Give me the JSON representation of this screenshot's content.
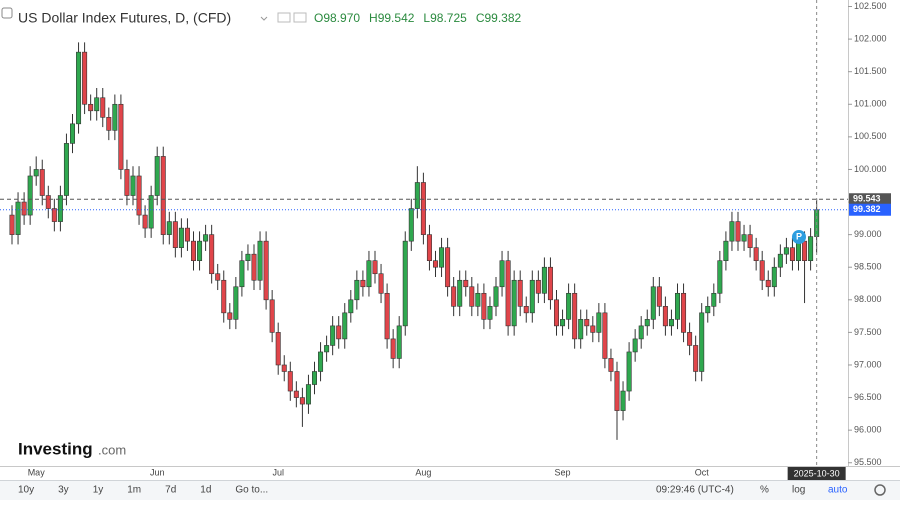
{
  "chart_data": {
    "type": "candlestick",
    "title": "US Dollar Index Futures, D, (CFD)",
    "ohlc_labels": [
      "O98.970",
      "H99.542",
      "L98.725",
      "C99.382"
    ],
    "up_color": "#2fa84f",
    "down_color": "#e0454a",
    "categories": [
      null,
      null,
      null,
      null,
      "May",
      null,
      null,
      null,
      null,
      null,
      null,
      null,
      null,
      null,
      null,
      null,
      null,
      null,
      null,
      null,
      null,
      null,
      null,
      null,
      "Jun",
      null,
      null,
      null,
      null,
      null,
      null,
      null,
      null,
      null,
      null,
      null,
      null,
      null,
      null,
      null,
      null,
      null,
      null,
      null,
      "Jul",
      null,
      null,
      null,
      null,
      null,
      null,
      null,
      null,
      null,
      null,
      null,
      null,
      null,
      null,
      null,
      null,
      null,
      null,
      null,
      null,
      null,
      null,
      null,
      "Aug",
      null,
      null,
      null,
      null,
      null,
      null,
      null,
      null,
      null,
      null,
      null,
      null,
      null,
      null,
      null,
      null,
      null,
      null,
      null,
      null,
      null,
      null,
      "Sep",
      null,
      null,
      null,
      null,
      null,
      null,
      null,
      null,
      null,
      null,
      null,
      null,
      null,
      null,
      null,
      null,
      null,
      null,
      null,
      null,
      null,
      null,
      "Oct",
      null,
      null,
      null,
      null,
      null,
      null,
      null,
      null,
      null,
      null,
      null,
      null,
      null,
      null,
      null,
      null,
      null,
      null,
      null
    ],
    "ohlc": [
      [
        99.3,
        99.45,
        98.85,
        99.0
      ],
      [
        99.0,
        99.65,
        98.85,
        99.5
      ],
      [
        99.5,
        99.65,
        99.15,
        99.3
      ],
      [
        99.3,
        100.05,
        99.15,
        99.9
      ],
      [
        99.9,
        100.2,
        99.75,
        100.0
      ],
      [
        100.0,
        100.15,
        99.45,
        99.6
      ],
      [
        99.6,
        99.75,
        99.25,
        99.4
      ],
      [
        99.4,
        99.55,
        99.05,
        99.2
      ],
      [
        99.2,
        99.75,
        99.05,
        99.6
      ],
      [
        99.6,
        100.55,
        99.45,
        100.4
      ],
      [
        100.4,
        100.85,
        100.25,
        100.7
      ],
      [
        100.7,
        101.95,
        100.55,
        101.8
      ],
      [
        101.8,
        101.95,
        100.85,
        101.0
      ],
      [
        101.0,
        101.15,
        100.75,
        100.9
      ],
      [
        100.9,
        101.25,
        100.75,
        101.1
      ],
      [
        101.1,
        101.25,
        100.65,
        100.8
      ],
      [
        100.8,
        100.95,
        100.45,
        100.6
      ],
      [
        100.6,
        101.15,
        100.45,
        101.0
      ],
      [
        101.0,
        101.15,
        99.85,
        100.0
      ],
      [
        100.0,
        100.15,
        99.45,
        99.6
      ],
      [
        99.6,
        100.05,
        99.45,
        99.9
      ],
      [
        99.9,
        100.05,
        99.15,
        99.3
      ],
      [
        99.3,
        99.45,
        98.95,
        99.1
      ],
      [
        99.1,
        99.75,
        98.95,
        99.6
      ],
      [
        99.6,
        100.35,
        99.45,
        100.2
      ],
      [
        100.2,
        100.35,
        98.85,
        99.0
      ],
      [
        99.0,
        99.35,
        98.85,
        99.2
      ],
      [
        99.2,
        99.35,
        98.65,
        98.8
      ],
      [
        98.8,
        99.25,
        98.65,
        99.1
      ],
      [
        99.1,
        99.25,
        98.75,
        98.9
      ],
      [
        98.9,
        99.05,
        98.45,
        98.6
      ],
      [
        98.6,
        99.05,
        98.45,
        98.9
      ],
      [
        98.9,
        99.15,
        98.75,
        99.0
      ],
      [
        99.0,
        99.15,
        98.25,
        98.4
      ],
      [
        98.4,
        98.55,
        98.15,
        98.3
      ],
      [
        98.3,
        98.45,
        97.65,
        97.8
      ],
      [
        97.8,
        97.95,
        97.55,
        97.7
      ],
      [
        97.7,
        98.35,
        97.55,
        98.2
      ],
      [
        98.2,
        98.75,
        98.05,
        98.6
      ],
      [
        98.6,
        98.85,
        98.45,
        98.7
      ],
      [
        98.7,
        98.85,
        98.15,
        98.3
      ],
      [
        98.3,
        99.05,
        98.15,
        98.9
      ],
      [
        98.9,
        99.05,
        97.85,
        98.0
      ],
      [
        98.0,
        98.15,
        97.35,
        97.5
      ],
      [
        97.5,
        97.65,
        96.85,
        97.0
      ],
      [
        97.0,
        97.15,
        96.75,
        96.9
      ],
      [
        96.9,
        97.05,
        96.45,
        96.6
      ],
      [
        96.6,
        96.75,
        96.35,
        96.5
      ],
      [
        96.5,
        96.65,
        96.05,
        96.4
      ],
      [
        96.4,
        96.85,
        96.25,
        96.7
      ],
      [
        96.7,
        97.05,
        96.55,
        96.9
      ],
      [
        96.9,
        97.35,
        96.75,
        97.2
      ],
      [
        97.2,
        97.45,
        97.05,
        97.3
      ],
      [
        97.3,
        97.75,
        97.15,
        97.6
      ],
      [
        97.6,
        97.75,
        97.25,
        97.4
      ],
      [
        97.4,
        97.95,
        97.25,
        97.8
      ],
      [
        97.8,
        98.15,
        97.65,
        98.0
      ],
      [
        98.0,
        98.45,
        97.85,
        98.3
      ],
      [
        98.3,
        98.45,
        98.05,
        98.2
      ],
      [
        98.2,
        98.75,
        98.05,
        98.6
      ],
      [
        98.6,
        98.75,
        98.25,
        98.4
      ],
      [
        98.4,
        98.55,
        97.95,
        98.1
      ],
      [
        98.1,
        98.25,
        97.25,
        97.4
      ],
      [
        97.4,
        97.55,
        96.95,
        97.1
      ],
      [
        97.1,
        97.75,
        96.95,
        97.6
      ],
      [
        97.6,
        99.05,
        97.45,
        98.9
      ],
      [
        98.9,
        99.55,
        98.75,
        99.4
      ],
      [
        99.4,
        100.05,
        99.25,
        99.8
      ],
      [
        99.8,
        99.95,
        98.85,
        99.0
      ],
      [
        99.0,
        99.15,
        98.45,
        98.6
      ],
      [
        98.6,
        98.75,
        98.35,
        98.5
      ],
      [
        98.5,
        98.95,
        98.35,
        98.8
      ],
      [
        98.8,
        98.95,
        98.05,
        98.2
      ],
      [
        98.2,
        98.35,
        97.75,
        97.9
      ],
      [
        97.9,
        98.45,
        97.75,
        98.3
      ],
      [
        98.3,
        98.45,
        98.05,
        98.2
      ],
      [
        98.2,
        98.35,
        97.75,
        97.9
      ],
      [
        97.9,
        98.25,
        97.75,
        98.1
      ],
      [
        98.1,
        98.25,
        97.55,
        97.7
      ],
      [
        97.7,
        98.05,
        97.55,
        97.9
      ],
      [
        97.9,
        98.35,
        97.75,
        98.2
      ],
      [
        98.2,
        98.75,
        98.05,
        98.6
      ],
      [
        98.6,
        98.75,
        97.45,
        97.6
      ],
      [
        97.6,
        98.45,
        97.45,
        98.3
      ],
      [
        98.3,
        98.45,
        97.75,
        97.9
      ],
      [
        97.9,
        98.05,
        97.65,
        97.8
      ],
      [
        97.8,
        98.45,
        97.65,
        98.3
      ],
      [
        98.3,
        98.45,
        97.95,
        98.1
      ],
      [
        98.1,
        98.65,
        97.95,
        98.5
      ],
      [
        98.5,
        98.65,
        97.85,
        98.0
      ],
      [
        98.0,
        98.15,
        97.45,
        97.6
      ],
      [
        97.6,
        97.85,
        97.45,
        97.7
      ],
      [
        97.7,
        98.25,
        97.55,
        98.1
      ],
      [
        98.1,
        98.25,
        97.25,
        97.4
      ],
      [
        97.4,
        97.85,
        97.25,
        97.7
      ],
      [
        97.7,
        97.85,
        97.45,
        97.6
      ],
      [
        97.6,
        97.75,
        97.35,
        97.5
      ],
      [
        97.5,
        97.95,
        97.35,
        97.8
      ],
      [
        97.8,
        97.95,
        96.95,
        97.1
      ],
      [
        97.1,
        97.25,
        96.75,
        96.9
      ],
      [
        96.9,
        97.05,
        95.85,
        96.3
      ],
      [
        96.3,
        96.75,
        96.15,
        96.6
      ],
      [
        96.6,
        97.35,
        96.45,
        97.2
      ],
      [
        97.2,
        97.55,
        97.05,
        97.4
      ],
      [
        97.4,
        97.75,
        97.25,
        97.6
      ],
      [
        97.6,
        97.85,
        97.45,
        97.7
      ],
      [
        97.7,
        98.35,
        97.55,
        98.2
      ],
      [
        98.2,
        98.35,
        97.75,
        97.9
      ],
      [
        97.9,
        98.05,
        97.45,
        97.6
      ],
      [
        97.6,
        97.85,
        97.45,
        97.7
      ],
      [
        97.7,
        98.25,
        97.55,
        98.1
      ],
      [
        98.1,
        98.25,
        97.35,
        97.5
      ],
      [
        97.5,
        97.65,
        97.15,
        97.3
      ],
      [
        97.3,
        97.45,
        96.75,
        96.9
      ],
      [
        96.9,
        97.95,
        96.75,
        97.8
      ],
      [
        97.8,
        98.05,
        97.65,
        97.9
      ],
      [
        97.9,
        98.25,
        97.75,
        98.1
      ],
      [
        98.1,
        98.75,
        97.95,
        98.6
      ],
      [
        98.6,
        99.05,
        98.45,
        98.9
      ],
      [
        98.9,
        99.35,
        98.75,
        99.2
      ],
      [
        99.2,
        99.35,
        98.75,
        98.9
      ],
      [
        98.9,
        99.15,
        98.75,
        99.0
      ],
      [
        99.0,
        99.15,
        98.65,
        98.8
      ],
      [
        98.8,
        98.95,
        98.45,
        98.6
      ],
      [
        98.6,
        98.75,
        98.15,
        98.3
      ],
      [
        98.3,
        98.45,
        98.05,
        98.2
      ],
      [
        98.2,
        98.65,
        98.05,
        98.5
      ],
      [
        98.5,
        98.85,
        98.35,
        98.7
      ],
      [
        98.7,
        98.95,
        98.55,
        98.8
      ],
      [
        98.8,
        98.95,
        98.45,
        98.6
      ],
      [
        98.6,
        99.05,
        98.45,
        98.9
      ],
      [
        98.9,
        99.05,
        97.95,
        98.6
      ],
      [
        98.6,
        99.1,
        98.45,
        98.97
      ],
      [
        98.97,
        99.542,
        98.725,
        99.382
      ]
    ],
    "ylim": [
      95.45,
      102.6
    ],
    "yticks": [
      {
        "value": 95.5,
        "label": "95.500"
      },
      {
        "value": 96,
        "label": "96.000"
      },
      {
        "value": 96.5,
        "label": "96.500"
      },
      {
        "value": 97,
        "label": "97.000"
      },
      {
        "value": 97.5,
        "label": "97.500"
      },
      {
        "value": 98,
        "label": "98.000"
      },
      {
        "value": 98.5,
        "label": "98.500"
      },
      {
        "value": 99,
        "label": "99.000"
      },
      {
        "value": 99.5,
        "label": "99.500"
      },
      {
        "value": 100,
        "label": "100.000"
      },
      {
        "value": 100.5,
        "label": "100.500"
      },
      {
        "value": 101,
        "label": "101.000"
      },
      {
        "value": 101.5,
        "label": "101.500"
      },
      {
        "value": 102,
        "label": "102.000"
      },
      {
        "value": 102.5,
        "label": "102.500"
      }
    ],
    "price_lines": [
      {
        "value": 99.543,
        "label": "99.543",
        "color": "#555555"
      },
      {
        "value": 99.382,
        "label": "99.382",
        "color": "#2962ff"
      }
    ],
    "crosshair_label": "2025-10-30"
  },
  "brand": {
    "name": "Investing",
    "suffix": ".com"
  },
  "toolbar": {
    "ranges": [
      "10y",
      "3y",
      "1y",
      "1m",
      "7d",
      "1d",
      "Go to..."
    ],
    "time": "09:29:46 (UTC-4)",
    "options": [
      "%",
      "log",
      "auto"
    ]
  }
}
